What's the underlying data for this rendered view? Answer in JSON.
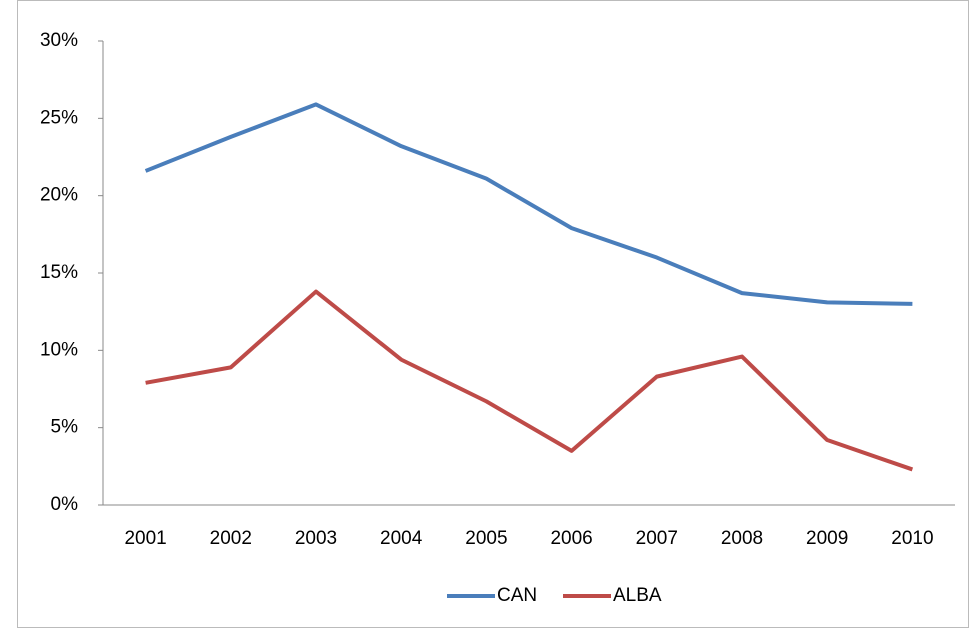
{
  "chart_data": {
    "type": "line",
    "categories": [
      "2001",
      "2002",
      "2003",
      "2004",
      "2005",
      "2006",
      "2007",
      "2008",
      "2009",
      "2010"
    ],
    "series": [
      {
        "name": "CAN",
        "color": "#4a7ebb",
        "values": [
          21.6,
          23.8,
          25.9,
          23.2,
          21.1,
          17.9,
          16.0,
          13.7,
          13.1,
          13.0
        ]
      },
      {
        "name": "ALBA",
        "color": "#be4b48",
        "values": [
          7.9,
          8.9,
          13.8,
          9.4,
          6.7,
          3.5,
          8.3,
          9.6,
          4.2,
          2.3
        ]
      }
    ],
    "ylim": [
      0,
      30
    ],
    "yticks": [
      {
        "value": 0,
        "label": "0%"
      },
      {
        "value": 5,
        "label": "5%"
      },
      {
        "value": 10,
        "label": "10%"
      },
      {
        "value": 15,
        "label": "15%"
      },
      {
        "value": 20,
        "label": "20%"
      },
      {
        "value": 25,
        "label": "25%"
      },
      {
        "value": 30,
        "label": "30%"
      }
    ],
    "grid": false,
    "legend": "bottom"
  }
}
